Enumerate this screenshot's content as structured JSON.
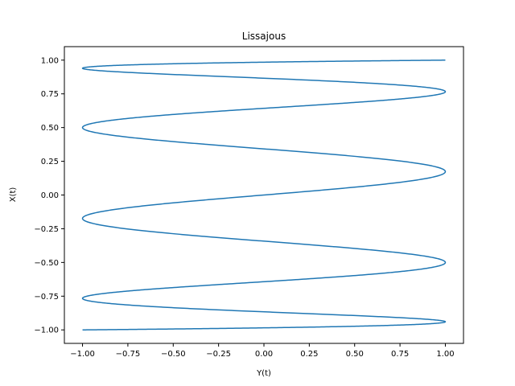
{
  "chart_data": {
    "type": "line",
    "title": "Lissajous",
    "xlabel": "Y(t)",
    "ylabel": "X(t)",
    "xlim": [
      -1.1,
      1.1
    ],
    "ylim": [
      -1.1,
      1.1
    ],
    "xticks": [
      -1.0,
      -0.75,
      -0.5,
      -0.25,
      0.0,
      0.25,
      0.5,
      0.75,
      1.0
    ],
    "xtick_labels": [
      "−1.00",
      "−0.75",
      "−0.50",
      "−0.25",
      "0.00",
      "0.25",
      "0.50",
      "0.75",
      "1.00"
    ],
    "yticks": [
      -1.0,
      -0.75,
      -0.5,
      -0.25,
      0.0,
      0.25,
      0.5,
      0.75,
      1.0
    ],
    "ytick_labels": [
      "−1.00",
      "−0.75",
      "−0.50",
      "−0.25",
      "0.00",
      "0.25",
      "0.50",
      "0.75",
      "1.00"
    ],
    "grid": false,
    "color": "#1f77b4",
    "curve": {
      "x_expression": "sin(t)",
      "y_expression": "sin(9t)"
    }
  }
}
